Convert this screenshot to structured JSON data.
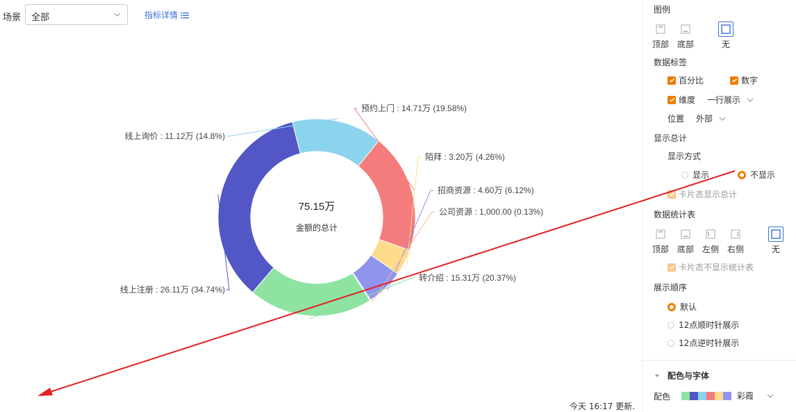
{
  "toolbar": {
    "scene_label": "场景",
    "scene_value": "全部",
    "metric_detail_link": "指标详情"
  },
  "chart_data": {
    "type": "pie",
    "donut": true,
    "center_value": "75.15万",
    "center_label": "金额的总计",
    "slices": [
      {
        "name": "预约上门",
        "value": 147100,
        "display": "14.71万",
        "percent": "19.58%",
        "color": "#f57c7c"
      },
      {
        "name": "陌拜",
        "value": 32000,
        "display": "3.20万",
        "percent": "4.26%",
        "color": "#fddc8b"
      },
      {
        "name": "招商资源",
        "value": 46000,
        "display": "4.60万",
        "percent": "6.12%",
        "color": "#9194ef"
      },
      {
        "name": "公司资源",
        "value": 1000,
        "display": "1,000.00",
        "percent": "0.13%",
        "color": "#f7b98e"
      },
      {
        "name": "转介绍",
        "value": 153100,
        "display": "15.31万",
        "percent": "20.37%",
        "color": "#8ee3a2"
      },
      {
        "name": "线上注册",
        "value": 261100,
        "display": "26.11万",
        "percent": "34.74%",
        "color": "#5257c5"
      },
      {
        "name": "线上询价",
        "value": 111200,
        "display": "11.12万",
        "percent": "14.8%",
        "color": "#8cd3ee"
      }
    ]
  },
  "status": {
    "updated": "今天 16:17 更新."
  },
  "panel": {
    "legend": {
      "title": "图例",
      "options": [
        "顶部",
        "底部",
        "无"
      ],
      "selected": "无"
    },
    "data_labels": {
      "title": "数据标签",
      "percent": "百分比",
      "number": "数字",
      "dimension": "维度",
      "layout_value": "一行展示",
      "position_label": "位置",
      "position_value": "外部"
    },
    "show_total": {
      "title": "显示总计",
      "mode_label": "显示方式",
      "show": "显示",
      "hide": "不显示",
      "card_option": "卡片态显示总计"
    },
    "stats_table": {
      "title": "数据统计表",
      "options": [
        "顶部",
        "底部",
        "左侧",
        "右侧",
        "无"
      ],
      "selected": "无",
      "card_option": "卡片态不显示统计表"
    },
    "order": {
      "title": "展示顺序",
      "default": "默认",
      "clockwise": "12点顺时针展示",
      "counter": "12点逆时针展示"
    },
    "color_font": {
      "section_title": "配色与字体",
      "palette_label": "配色",
      "palette_name": "彩霞",
      "palette_colors": [
        "#8ee3a2",
        "#5257c5",
        "#8cd3ee",
        "#f57c7c",
        "#fddc8b",
        "#9194ef"
      ]
    }
  },
  "annotation": {
    "arrow_color": "#e02020"
  }
}
